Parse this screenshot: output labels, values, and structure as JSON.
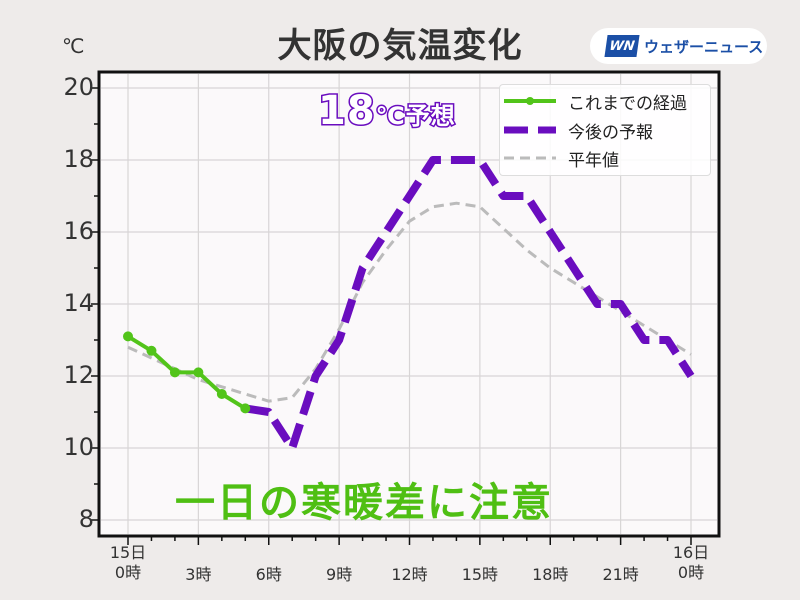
{
  "header": {
    "title": "大阪の気温変化",
    "unit": "℃",
    "brand_logo": "WN",
    "brand_name": "ウェザーニュース"
  },
  "annotations": {
    "forecast_high": "18",
    "forecast_high_suffix": "℃予想",
    "warning": "一日の寒暖差に注意"
  },
  "legend": {
    "items": [
      {
        "label": "これまでの経過",
        "color": "#52c41a",
        "style": "solid-with-markers"
      },
      {
        "label": "今後の予報",
        "color": "#6a0dbf",
        "style": "thick-dashed"
      },
      {
        "label": "平年値",
        "color": "#bbbbbb",
        "style": "thin-dashed"
      }
    ]
  },
  "axes": {
    "y_ticks": [
      "20",
      "18",
      "16",
      "14",
      "12",
      "10",
      "8"
    ],
    "x_ticks": [
      {
        "line1": "15日",
        "line2": "0時"
      },
      {
        "line1": "",
        "line2": "3時"
      },
      {
        "line1": "",
        "line2": "6時"
      },
      {
        "line1": "",
        "line2": "9時"
      },
      {
        "line1": "",
        "line2": "12時"
      },
      {
        "line1": "",
        "line2": "15時"
      },
      {
        "line1": "",
        "line2": "18時"
      },
      {
        "line1": "",
        "line2": "21時"
      },
      {
        "line1": "16日",
        "line2": "0時"
      }
    ]
  },
  "chart_data": {
    "type": "line",
    "title": "大阪の気温変化",
    "xlabel": "",
    "ylabel": "℃",
    "ylim": [
      7.7,
      20.3
    ],
    "xlim": [
      -0.5,
      24.5
    ],
    "grid": true,
    "legend_position": "upper right",
    "x_tick_labels": [
      "15日 0時",
      "3時",
      "6時",
      "9時",
      "12時",
      "15時",
      "18時",
      "21時",
      "16日 0時"
    ],
    "series": [
      {
        "name": "これまでの経過",
        "color": "#52c41a",
        "x": [
          0,
          1,
          2,
          3,
          4,
          5
        ],
        "values": [
          13.1,
          12.7,
          12.1,
          12.1,
          11.5,
          11.1
        ]
      },
      {
        "name": "今後の予報",
        "color": "#6a0dbf",
        "x": [
          5,
          6,
          7,
          8,
          9,
          10,
          11,
          12,
          13,
          14,
          15,
          16,
          17,
          18,
          19,
          20,
          21,
          22,
          23,
          24
        ],
        "values": [
          11.1,
          11.0,
          10.0,
          12.0,
          13.0,
          15.0,
          16.0,
          17.0,
          18.0,
          18.0,
          18.0,
          17.0,
          17.0,
          16.0,
          15.0,
          14.0,
          14.0,
          13.0,
          13.0,
          12.0
        ]
      },
      {
        "name": "平年値",
        "color": "#bbbbbb",
        "x": [
          0,
          1,
          2,
          3,
          4,
          5,
          6,
          7,
          8,
          9,
          10,
          11,
          12,
          13,
          14,
          15,
          16,
          17,
          18,
          19,
          20,
          21,
          22,
          23,
          24
        ],
        "values": [
          12.8,
          12.5,
          12.2,
          11.9,
          11.7,
          11.5,
          11.3,
          11.4,
          12.2,
          13.3,
          14.6,
          15.5,
          16.3,
          16.7,
          16.8,
          16.7,
          16.1,
          15.5,
          15.0,
          14.6,
          14.2,
          13.8,
          13.4,
          13.0,
          12.6
        ]
      }
    ],
    "annotations": [
      "18℃予想",
      "一日の寒暖差に注意"
    ]
  }
}
